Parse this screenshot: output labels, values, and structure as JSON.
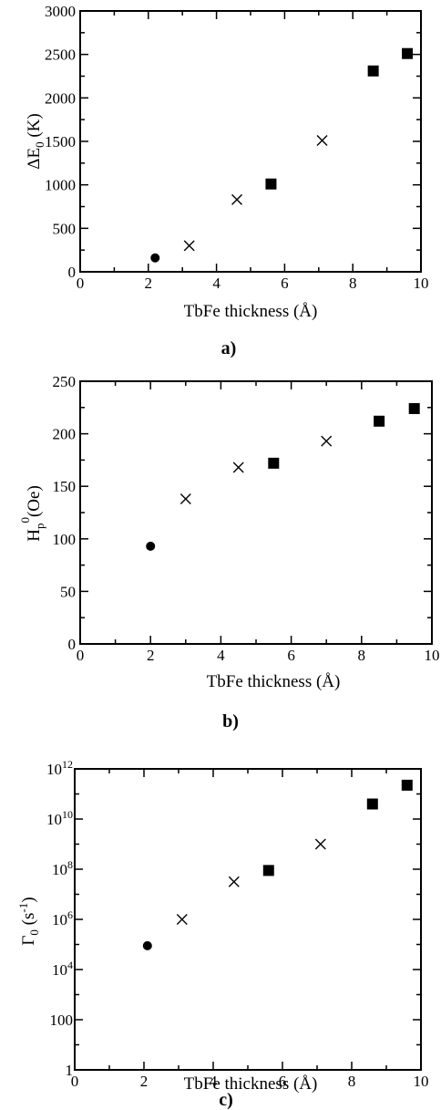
{
  "chart_data": [
    {
      "type": "scatter",
      "panel_label": "a)",
      "xlabel": "TbFe thickness (Å)",
      "ylabel_main": "ΔE",
      "ylabel_sub": "0",
      "ylabel_tail": " (K)",
      "xlim": [
        0,
        10
      ],
      "ylim": [
        0,
        3000
      ],
      "xticks": [
        "0",
        "2",
        "4",
        "6",
        "8",
        "10"
      ],
      "yticks": [
        "0",
        "500",
        "1000",
        "1500",
        "2000",
        "2500",
        "3000"
      ],
      "series": [
        {
          "marker": "circle",
          "points": [
            {
              "x": 2.2,
              "y": 160
            }
          ]
        },
        {
          "marker": "cross",
          "points": [
            {
              "x": 3.2,
              "y": 300
            },
            {
              "x": 4.6,
              "y": 830
            },
            {
              "x": 7.1,
              "y": 1510
            }
          ]
        },
        {
          "marker": "square",
          "points": [
            {
              "x": 5.6,
              "y": 1010
            },
            {
              "x": 8.6,
              "y": 2310
            },
            {
              "x": 9.6,
              "y": 2510
            }
          ]
        }
      ]
    },
    {
      "type": "scatter",
      "panel_label": "b)",
      "xlabel": "TbFe thickness (Å)",
      "ylabel_main": "H",
      "ylabel_sub": "p",
      "ylabel_sup": "0",
      "ylabel_tail": "(Oe)",
      "xlim": [
        0,
        10
      ],
      "ylim": [
        0,
        250
      ],
      "xticks": [
        "0",
        "2",
        "4",
        "6",
        "8",
        "10"
      ],
      "yticks": [
        "0",
        "50",
        "100",
        "150",
        "200",
        "250"
      ],
      "series": [
        {
          "marker": "circle",
          "points": [
            {
              "x": 2.0,
              "y": 93
            }
          ]
        },
        {
          "marker": "cross",
          "points": [
            {
              "x": 3.0,
              "y": 138
            },
            {
              "x": 4.5,
              "y": 168
            },
            {
              "x": 7.0,
              "y": 193
            }
          ]
        },
        {
          "marker": "square",
          "points": [
            {
              "x": 5.5,
              "y": 172
            },
            {
              "x": 8.5,
              "y": 212
            },
            {
              "x": 9.5,
              "y": 224
            }
          ]
        }
      ]
    },
    {
      "type": "scatter",
      "panel_label": "c)",
      "xlabel": "TbFe thickness  (Å)",
      "ylabel_main": "Γ",
      "ylabel_sub": "0",
      "ylabel_tail": "  (s",
      "ylabel_sup2": "-1",
      "ylabel_end": ")",
      "xlim": [
        0,
        10
      ],
      "yscale": "log",
      "ylim_exp": [
        0,
        12
      ],
      "xticks": [
        "0",
        "2",
        "4",
        "6",
        "8",
        "10"
      ],
      "ytick_labels": [
        {
          "exp": 0,
          "base": "1",
          "sup": ""
        },
        {
          "exp": 2,
          "base": "100",
          "sup": ""
        },
        {
          "exp": 4,
          "base": "10",
          "sup": "4"
        },
        {
          "exp": 6,
          "base": "10",
          "sup": "6"
        },
        {
          "exp": 8,
          "base": "10",
          "sup": "8"
        },
        {
          "exp": 10,
          "base": "10",
          "sup": "10"
        },
        {
          "exp": 12,
          "base": "10",
          "sup": "12"
        }
      ],
      "series": [
        {
          "marker": "circle",
          "points": [
            {
              "x": 2.1,
              "yexp": 4.95
            }
          ]
        },
        {
          "marker": "cross",
          "points": [
            {
              "x": 3.1,
              "yexp": 6.0
            },
            {
              "x": 4.6,
              "yexp": 7.5
            },
            {
              "x": 7.1,
              "yexp": 9.0
            }
          ]
        },
        {
          "marker": "square",
          "points": [
            {
              "x": 5.6,
              "yexp": 7.95
            },
            {
              "x": 8.6,
              "yexp": 10.6
            },
            {
              "x": 9.6,
              "yexp": 11.35
            }
          ]
        }
      ]
    }
  ]
}
